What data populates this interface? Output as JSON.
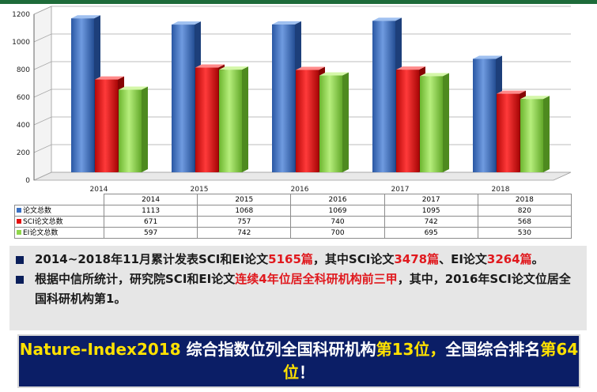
{
  "chart_data": {
    "type": "bar",
    "categories": [
      "2014",
      "2015",
      "2016",
      "2017",
      "2018"
    ],
    "ylim": [
      0,
      1200
    ],
    "yticks": [
      0,
      200,
      400,
      600,
      800,
      1000,
      1200
    ],
    "series": [
      {
        "name": "论文总数",
        "color": "#3a6fc2",
        "values": [
          1113,
          1068,
          1069,
          1095,
          820
        ]
      },
      {
        "name": "SCI论文总数",
        "color": "#e41010",
        "values": [
          671,
          757,
          740,
          742,
          568
        ]
      },
      {
        "name": "EI论文总数",
        "color": "#8fd64a",
        "values": [
          597,
          742,
          700,
          695,
          530
        ]
      }
    ]
  },
  "bullets": [
    {
      "parts": [
        {
          "text": "2014~2018年11月累计发表SCI和EI论文",
          "highlight": false
        },
        {
          "text": "5165篇",
          "highlight": true
        },
        {
          "text": "，其中SCI论文",
          "highlight": false
        },
        {
          "text": "3478篇",
          "highlight": true
        },
        {
          "text": "、EI论文",
          "highlight": false
        },
        {
          "text": "3264篇",
          "highlight": true
        },
        {
          "text": "。",
          "highlight": false
        }
      ]
    },
    {
      "parts": [
        {
          "text": "根据中信所统计，研究院SCI和EI论文",
          "highlight": false
        },
        {
          "text": "连续4年位居全科研机构前三甲",
          "highlight": true
        },
        {
          "text": "，其中，2016年SCI论文位居全国科研机构第1。",
          "highlight": false
        }
      ]
    }
  ],
  "banner": {
    "parts": [
      {
        "text": "Nature-Index2018",
        "highlight": true
      },
      {
        "text": " 综合指数位列全国科研机构",
        "highlight": false
      },
      {
        "text": "第13位，",
        "highlight": true
      },
      {
        "text": "全国综合排名",
        "highlight": false
      },
      {
        "text": "第64位",
        "highlight": true
      },
      {
        "text": "！",
        "highlight": false
      }
    ]
  },
  "colors": {
    "top_bar": "#1e6b3a",
    "highlight_red": "#e0191e",
    "highlight_yellow": "#ffe100",
    "banner_bg": "#0b1e66"
  }
}
